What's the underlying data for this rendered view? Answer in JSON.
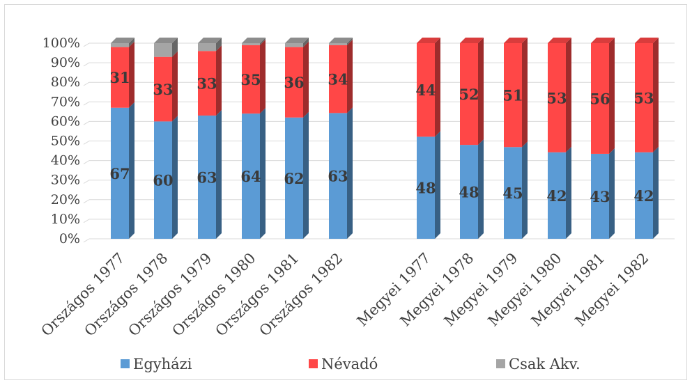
{
  "chart_data": {
    "type": "bar",
    "stacked": "percent",
    "categories": [
      "Országos 1977",
      "Országos 1978",
      "Országos 1979",
      "Országos 1980",
      "Országos 1981",
      "Országos 1982",
      "Megyei 1977",
      "Megyei 1978",
      "Megyei 1979",
      "Megyei 1980",
      "Megyei 1981",
      "Megyei 1982"
    ],
    "series": [
      {
        "name": "Egyházi",
        "color": "#5b9bd5",
        "values": [
          67,
          60,
          63,
          64,
          62,
          63,
          48,
          48,
          45,
          42,
          43,
          42
        ]
      },
      {
        "name": "Névadó",
        "color": "#ff4747",
        "values": [
          31,
          33,
          33,
          35,
          36,
          34,
          44,
          52,
          51,
          53,
          56,
          53
        ]
      },
      {
        "name": "Csak Akv.",
        "color": "#a5a5a5",
        "values": [
          2,
          7,
          4,
          1,
          2,
          1,
          0,
          0,
          0,
          0,
          0,
          0
        ]
      }
    ],
    "data_labels": {
      "Egyházi": [
        "67",
        "60",
        "63",
        "64",
        "62",
        "63",
        "48",
        "48",
        "45",
        "42",
        "43",
        "42"
      ],
      "Névadó": [
        "31",
        "33",
        "33",
        "35",
        "36",
        "34",
        "44",
        "52",
        "51",
        "53",
        "56",
        "53"
      ]
    },
    "yticks": [
      "0%",
      "10%",
      "20%",
      "30%",
      "40%",
      "50%",
      "60%",
      "70%",
      "80%",
      "90%",
      "100%"
    ],
    "ylim": [
      0,
      100
    ],
    "legend_position": "bottom",
    "grid": true,
    "title": "",
    "xlabel": "",
    "ylabel": ""
  }
}
